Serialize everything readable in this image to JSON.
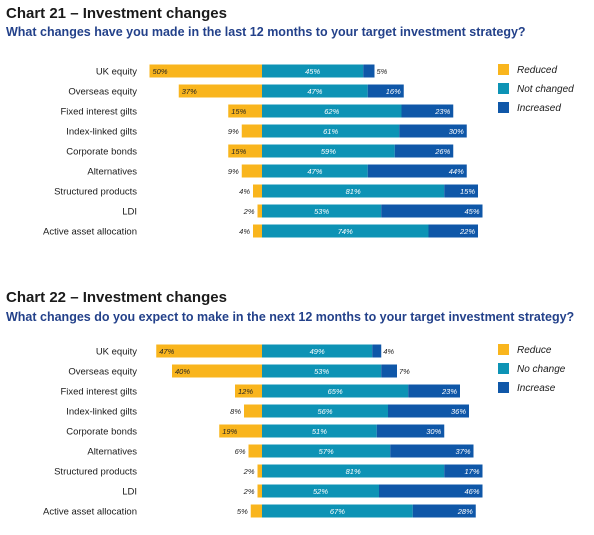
{
  "colors": {
    "reduced": "#f9b51d",
    "not_changed": "#0d93b5",
    "increased": "#0f57a8",
    "subtitle": "#23418a",
    "label_on_dark": "#ffffff",
    "label_outside": "#222222"
  },
  "chart_data": [
    {
      "type": "bar",
      "stacked": "diverging",
      "title": "Chart 21 – Investment changes",
      "subtitle": "What changes have you made in the last 12 months to your target investment strategy?",
      "legend_position": "right",
      "categories": [
        "UK equity",
        "Overseas equity",
        "Fixed interest gilts",
        "Index-linked gilts",
        "Corporate bonds",
        "Alternatives",
        "Structured products",
        "LDI",
        "Active asset allocation"
      ],
      "series": [
        {
          "name": "Reduced",
          "values": [
            50,
            37,
            15,
            9,
            15,
            9,
            4,
            2,
            4
          ]
        },
        {
          "name": "Not changed",
          "values": [
            45,
            47,
            62,
            61,
            59,
            47,
            81,
            53,
            74
          ]
        },
        {
          "name": "Increased",
          "values": [
            5,
            16,
            23,
            30,
            26,
            44,
            15,
            45,
            22
          ]
        }
      ]
    },
    {
      "type": "bar",
      "stacked": "diverging",
      "title": "Chart 22 – Investment changes",
      "subtitle": "What changes do you expect to make in the next 12 months to your target investment strategy?",
      "legend_position": "right",
      "categories": [
        "UK equity",
        "Overseas equity",
        "Fixed interest gilts",
        "Index-linked gilts",
        "Corporate bonds",
        "Alternatives",
        "Structured products",
        "LDI",
        "Active asset allocation"
      ],
      "series": [
        {
          "name": "Reduce",
          "values": [
            47,
            40,
            12,
            8,
            19,
            6,
            2,
            2,
            5
          ]
        },
        {
          "name": "No change",
          "values": [
            49,
            53,
            65,
            56,
            51,
            57,
            81,
            52,
            67
          ]
        },
        {
          "name": "Increase",
          "values": [
            4,
            7,
            23,
            36,
            30,
            37,
            17,
            46,
            28
          ]
        }
      ]
    }
  ]
}
